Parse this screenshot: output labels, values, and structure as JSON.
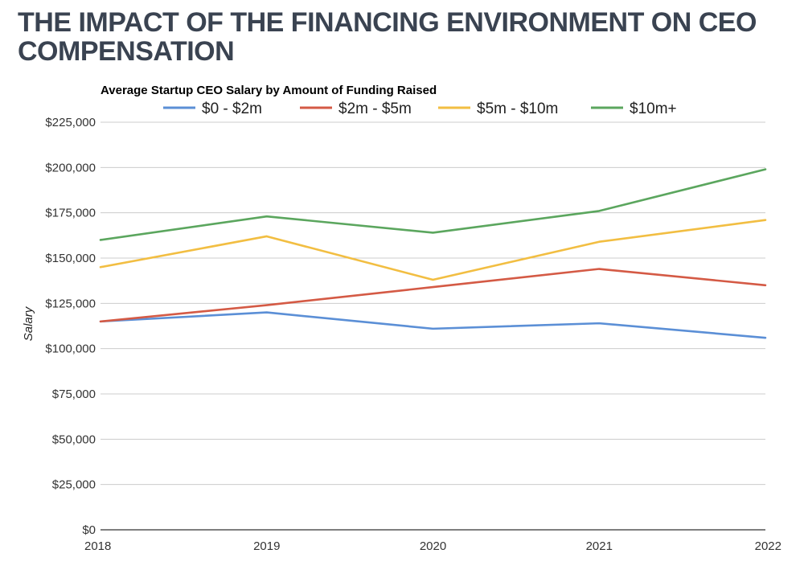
{
  "page": {
    "title": "THE IMPACT OF THE FINANCING ENVIRONMENT ON CEO COMPENSATION"
  },
  "chart_data": {
    "type": "line",
    "title": "Average Startup CEO Salary by Amount of Funding Raised",
    "xlabel": "",
    "ylabel": "Salary",
    "x": [
      "2018",
      "2019",
      "2020",
      "2021",
      "2022"
    ],
    "ylim": [
      0,
      225000
    ],
    "yticks": [
      0,
      25000,
      50000,
      75000,
      100000,
      125000,
      150000,
      175000,
      200000,
      225000
    ],
    "ytick_labels": [
      "$0",
      "$25,000",
      "$50,000",
      "$75,000",
      "$100,000",
      "$125,000",
      "$150,000",
      "$175,000",
      "$200,000",
      "$225,000"
    ],
    "grid": true,
    "legend_position": "top",
    "series": [
      {
        "name": "$0 - $2m",
        "color": "#5b8fd6",
        "values": [
          115000,
          120000,
          111000,
          114000,
          106000
        ]
      },
      {
        "name": "$2m - $5m",
        "color": "#d45a45",
        "values": [
          115000,
          124000,
          134000,
          144000,
          135000
        ]
      },
      {
        "name": "$5m - $10m",
        "color": "#f2be42",
        "values": [
          145000,
          162000,
          138000,
          159000,
          171000
        ]
      },
      {
        "name": "$10m+",
        "color": "#5ba65e",
        "values": [
          160000,
          173000,
          164000,
          176000,
          199000
        ]
      }
    ]
  }
}
